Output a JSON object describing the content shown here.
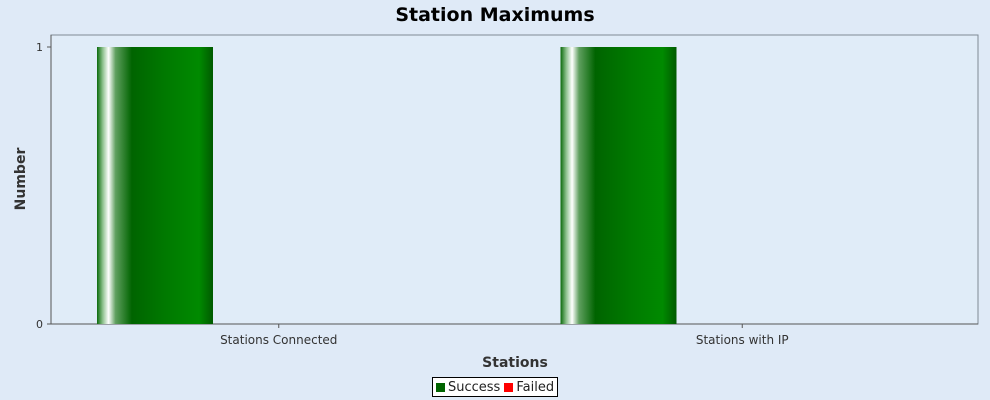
{
  "chart_data": {
    "type": "bar",
    "title": "Station Maximums",
    "xlabel": "Stations",
    "ylabel": "Number",
    "categories": [
      "Stations Connected",
      "Stations with IP"
    ],
    "series": [
      {
        "name": "Success",
        "color": "#006400",
        "values": [
          1,
          1
        ]
      },
      {
        "name": "Failed",
        "color": "#ff0000",
        "values": [
          0,
          0
        ]
      }
    ],
    "ylim": [
      0,
      1
    ],
    "yticks": [
      "0",
      "1"
    ],
    "grid": false,
    "legend_position": "bottom"
  }
}
